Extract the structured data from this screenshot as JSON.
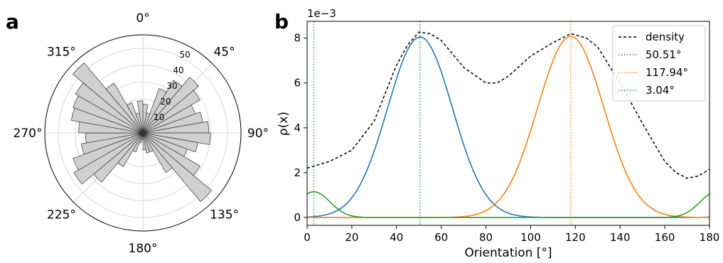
{
  "chart_data": [
    {
      "panel_label": "a",
      "type": "polar_bar",
      "theta_direction": "clockwise",
      "theta_zero": "top",
      "angle_labels": [
        "0°",
        "45°",
        "90°",
        "135°",
        "180°",
        "225°",
        "270°",
        "315°"
      ],
      "r_ticks": [
        10,
        20,
        30,
        40,
        50
      ],
      "r_tick_labels": [
        "10",
        "20",
        "30",
        "40",
        "50"
      ],
      "rmax": 58,
      "bin_width_deg": 10,
      "bin_centers_deg": [
        5,
        15,
        25,
        35,
        45,
        55,
        65,
        75,
        85,
        95,
        105,
        115,
        125,
        135,
        145,
        155,
        165,
        175,
        185,
        195,
        205,
        215,
        225,
        235,
        245,
        255,
        265,
        275,
        285,
        295,
        305,
        315,
        325,
        335,
        345,
        355
      ],
      "counts": [
        17,
        12,
        28,
        36,
        43,
        39,
        33,
        36,
        39,
        40,
        33,
        28,
        39,
        53,
        27,
        12,
        12,
        10,
        4,
        6,
        12,
        23,
        38,
        47,
        44,
        37,
        34,
        38,
        43,
        44,
        46,
        54,
        34,
        19,
        12,
        19
      ],
      "bar_color": "#d0d0d0",
      "edge_color": "#333333"
    },
    {
      "panel_label": "b",
      "type": "line",
      "xlabel": "Orientation [°]",
      "ylabel": "ρ(x)",
      "y_multiplier_label": "1e−3",
      "xlim": [
        0,
        180
      ],
      "ylim": [
        -0.35,
        8.75
      ],
      "xticks": [
        0,
        20,
        40,
        60,
        80,
        100,
        120,
        140,
        160,
        180
      ],
      "yticks": [
        0,
        2,
        4,
        6,
        8
      ],
      "legend_position": "top-right",
      "legend": [
        {
          "label": "density",
          "color": "#000000",
          "style": "dashed"
        },
        {
          "label": "50.51°",
          "color": "#1f77b4",
          "style": "dotted"
        },
        {
          "label": "117.94°",
          "color": "#ff7f0e",
          "style": "dotted"
        },
        {
          "label": "3.04°",
          "color": "#2ca02c",
          "style": "dotted"
        }
      ],
      "series": [
        {
          "color": "#000000",
          "style": "dashed",
          "x": [
            0,
            10,
            20,
            30,
            40,
            45,
            50,
            55,
            60,
            70,
            80,
            85,
            90,
            100,
            110,
            118,
            125,
            130,
            140,
            150,
            160,
            165,
            170,
            175,
            180
          ],
          "y": [
            2.2,
            2.5,
            3.0,
            4.3,
            6.8,
            7.7,
            8.27,
            8.2,
            7.9,
            6.7,
            6.0,
            6.0,
            6.3,
            7.2,
            7.8,
            8.2,
            8.0,
            7.6,
            6.0,
            4.2,
            2.5,
            2.0,
            1.75,
            1.85,
            2.15
          ]
        },
        {
          "color": "#1f77b4",
          "style": "solid",
          "mean": 50.51,
          "sd": 14.5,
          "peak": 8.05
        },
        {
          "color": "#ff7f0e",
          "style": "solid",
          "mean": 117.94,
          "sd": 14.8,
          "peak": 8.08
        },
        {
          "color": "#2ca02c",
          "style": "solid",
          "mean": 3.04,
          "sd": 7.2,
          "peak": 1.15
        }
      ],
      "vlines": [
        {
          "x": 50.51,
          "color": "#1f77b4"
        },
        {
          "x": 117.94,
          "color": "#ff7f0e"
        },
        {
          "x": 3.04,
          "color": "#2ca02c"
        }
      ]
    }
  ]
}
